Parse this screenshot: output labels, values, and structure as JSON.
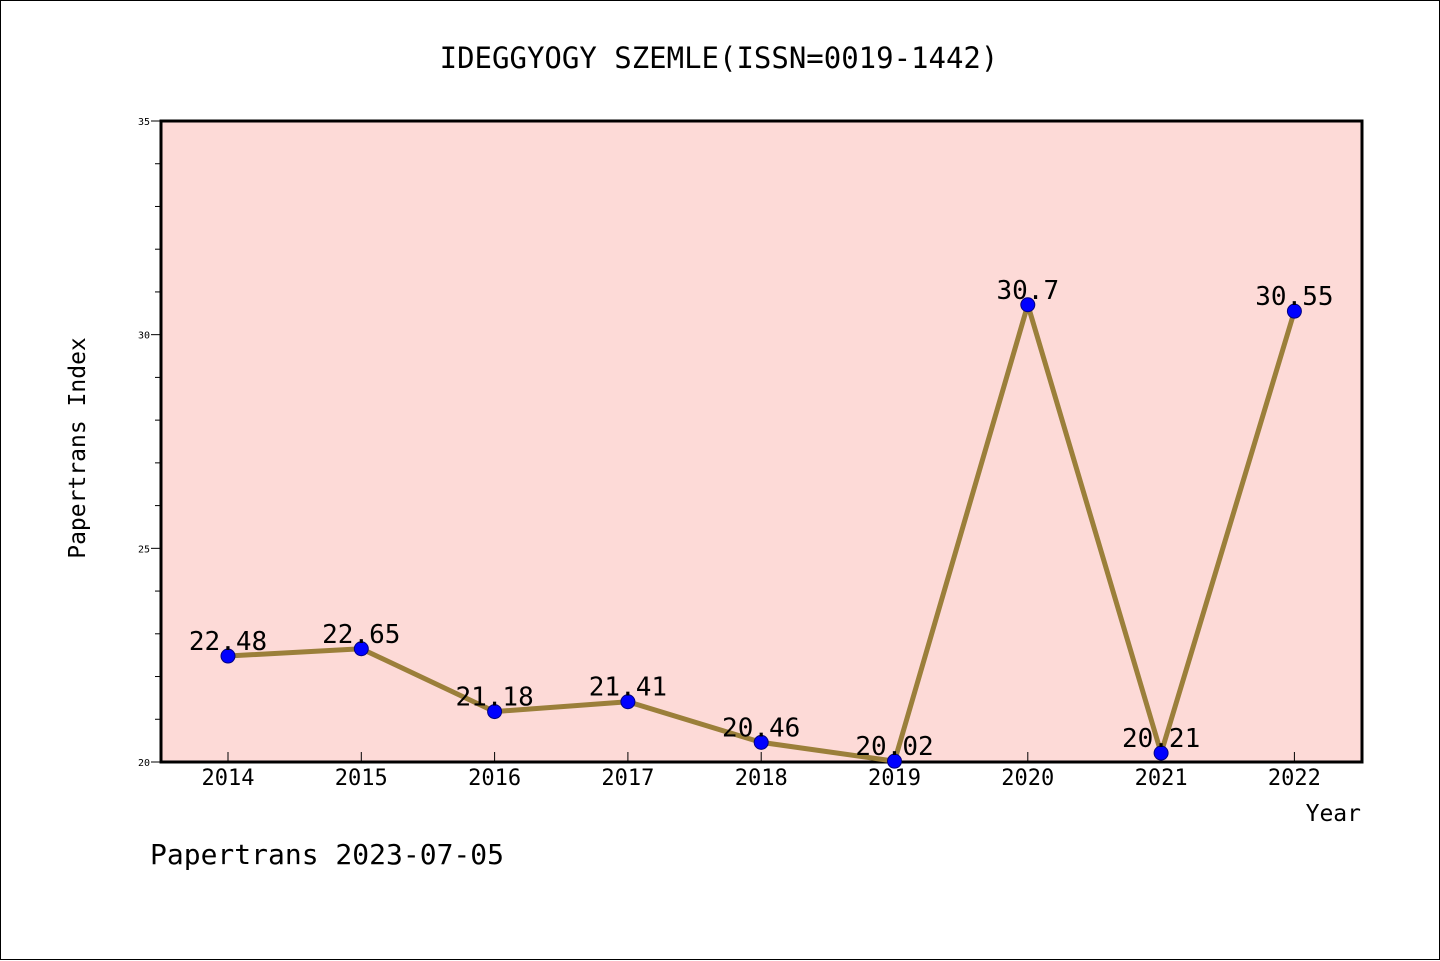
{
  "chart_data": {
    "type": "line",
    "title": "IDEGGYOGY SZEMLE(ISSN=0019-1442)",
    "xlabel": "Year",
    "ylabel": "Papertrans Index",
    "categories": [
      "2014",
      "2015",
      "2016",
      "2017",
      "2018",
      "2019",
      "2020",
      "2021",
      "2022"
    ],
    "series": [
      {
        "values": [
          22.48,
          22.65,
          21.18,
          21.41,
          20.46,
          20.02,
          30.7,
          20.21,
          30.55
        ]
      }
    ],
    "data_labels": [
      "22.48",
      "22.65",
      "21.18",
      "21.41",
      "20.46",
      "20.02",
      "30.7",
      "20.21",
      "30.55"
    ],
    "ylim": [
      20,
      35
    ],
    "yticks": [
      20,
      25,
      30,
      35
    ],
    "grid": false,
    "legend": "none",
    "colors": {
      "plot_background": "#fddad7",
      "line": "#9b7f3a",
      "marker_fill": "#0000ff",
      "marker_edge": "#000080",
      "axes": "#000000"
    }
  },
  "footer": {
    "text": "Papertrans 2023-07-05"
  }
}
